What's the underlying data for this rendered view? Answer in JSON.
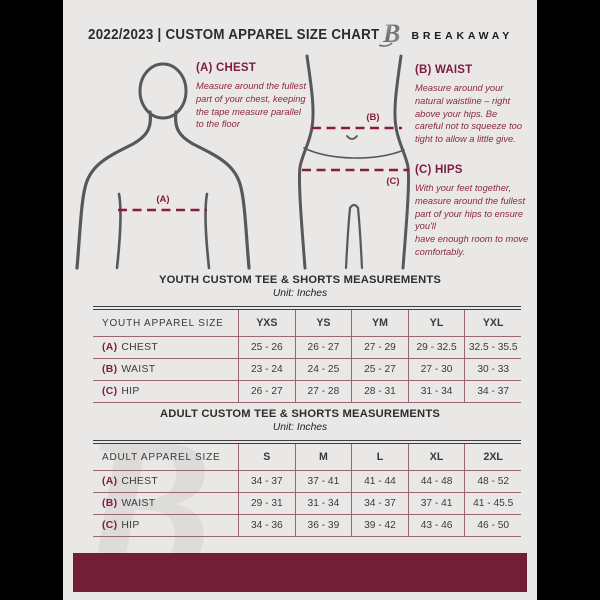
{
  "header": {
    "title": "2022/2023  |  CUSTOM APPAREL SIZE CHART",
    "brand": "BREAKAWAY",
    "logo_letter": "B"
  },
  "colors": {
    "maroon_heading": "#7d1c3e",
    "maroon_dash": "#8c1a38",
    "table_border": "#9c6573",
    "footer_bar": "#731e37",
    "page_bg": "#e9e8e6",
    "outline_gray": "#58585c",
    "text_dark": "#2d2d2d"
  },
  "instructions": {
    "chest": {
      "label": "(A) CHEST",
      "text": "Measure around the fullest part of your chest, keeping the tape measure parallel to the floor"
    },
    "waist": {
      "label": "(B) WAIST",
      "text": "Measure around your natural waistline – right above your hips. Be careful not to squeeze too tight to allow a little give."
    },
    "hips": {
      "label": "(C) HIPS",
      "text": "With your feet together, measure around the fullest part of your hips to ensure you'll\nhave enough room to move comfortably."
    }
  },
  "diagram_labels": {
    "chest": "(A)",
    "waist": "(B)",
    "hips": "(C)"
  },
  "youth_table": {
    "title": "YOUTH CUSTOM TEE & SHORTS MEASUREMENTS",
    "unit": "Unit: Inches",
    "header": [
      "YOUTH APPAREL SIZE",
      "YXS",
      "YS",
      "YM",
      "YL",
      "YXL"
    ],
    "rows": [
      {
        "key": "(A)",
        "label": "CHEST",
        "values": [
          "25 - 26",
          "26 - 27",
          "27 - 29",
          "29 - 32.5",
          "32.5 - 35.5"
        ]
      },
      {
        "key": "(B)",
        "label": "WAIST",
        "values": [
          "23 - 24",
          "24 - 25",
          "25 - 27",
          "27 - 30",
          "30 - 33"
        ]
      },
      {
        "key": "(C)",
        "label": "HIP",
        "values": [
          "26 - 27",
          "27 - 28",
          "28 - 31",
          "31 - 34",
          "34 - 37"
        ]
      }
    ]
  },
  "adult_table": {
    "title": "ADULT CUSTOM TEE & SHORTS MEASUREMENTS",
    "unit": "Unit: Inches",
    "header": [
      "ADULT APPAREL SIZE",
      "S",
      "M",
      "L",
      "XL",
      "2XL"
    ],
    "rows": [
      {
        "key": "(A)",
        "label": "CHEST",
        "values": [
          "34 - 37",
          "37 - 41",
          "41 - 44",
          "44 - 48",
          "48 - 52"
        ]
      },
      {
        "key": "(B)",
        "label": "WAIST",
        "values": [
          "29 - 31",
          "31 - 34",
          "34 - 37",
          "37 - 41",
          "41 - 45.5"
        ]
      },
      {
        "key": "(C)",
        "label": "HIP",
        "values": [
          "34 - 36",
          "36 - 39",
          "39 - 42",
          "43 - 46",
          "46 - 50"
        ]
      }
    ]
  }
}
